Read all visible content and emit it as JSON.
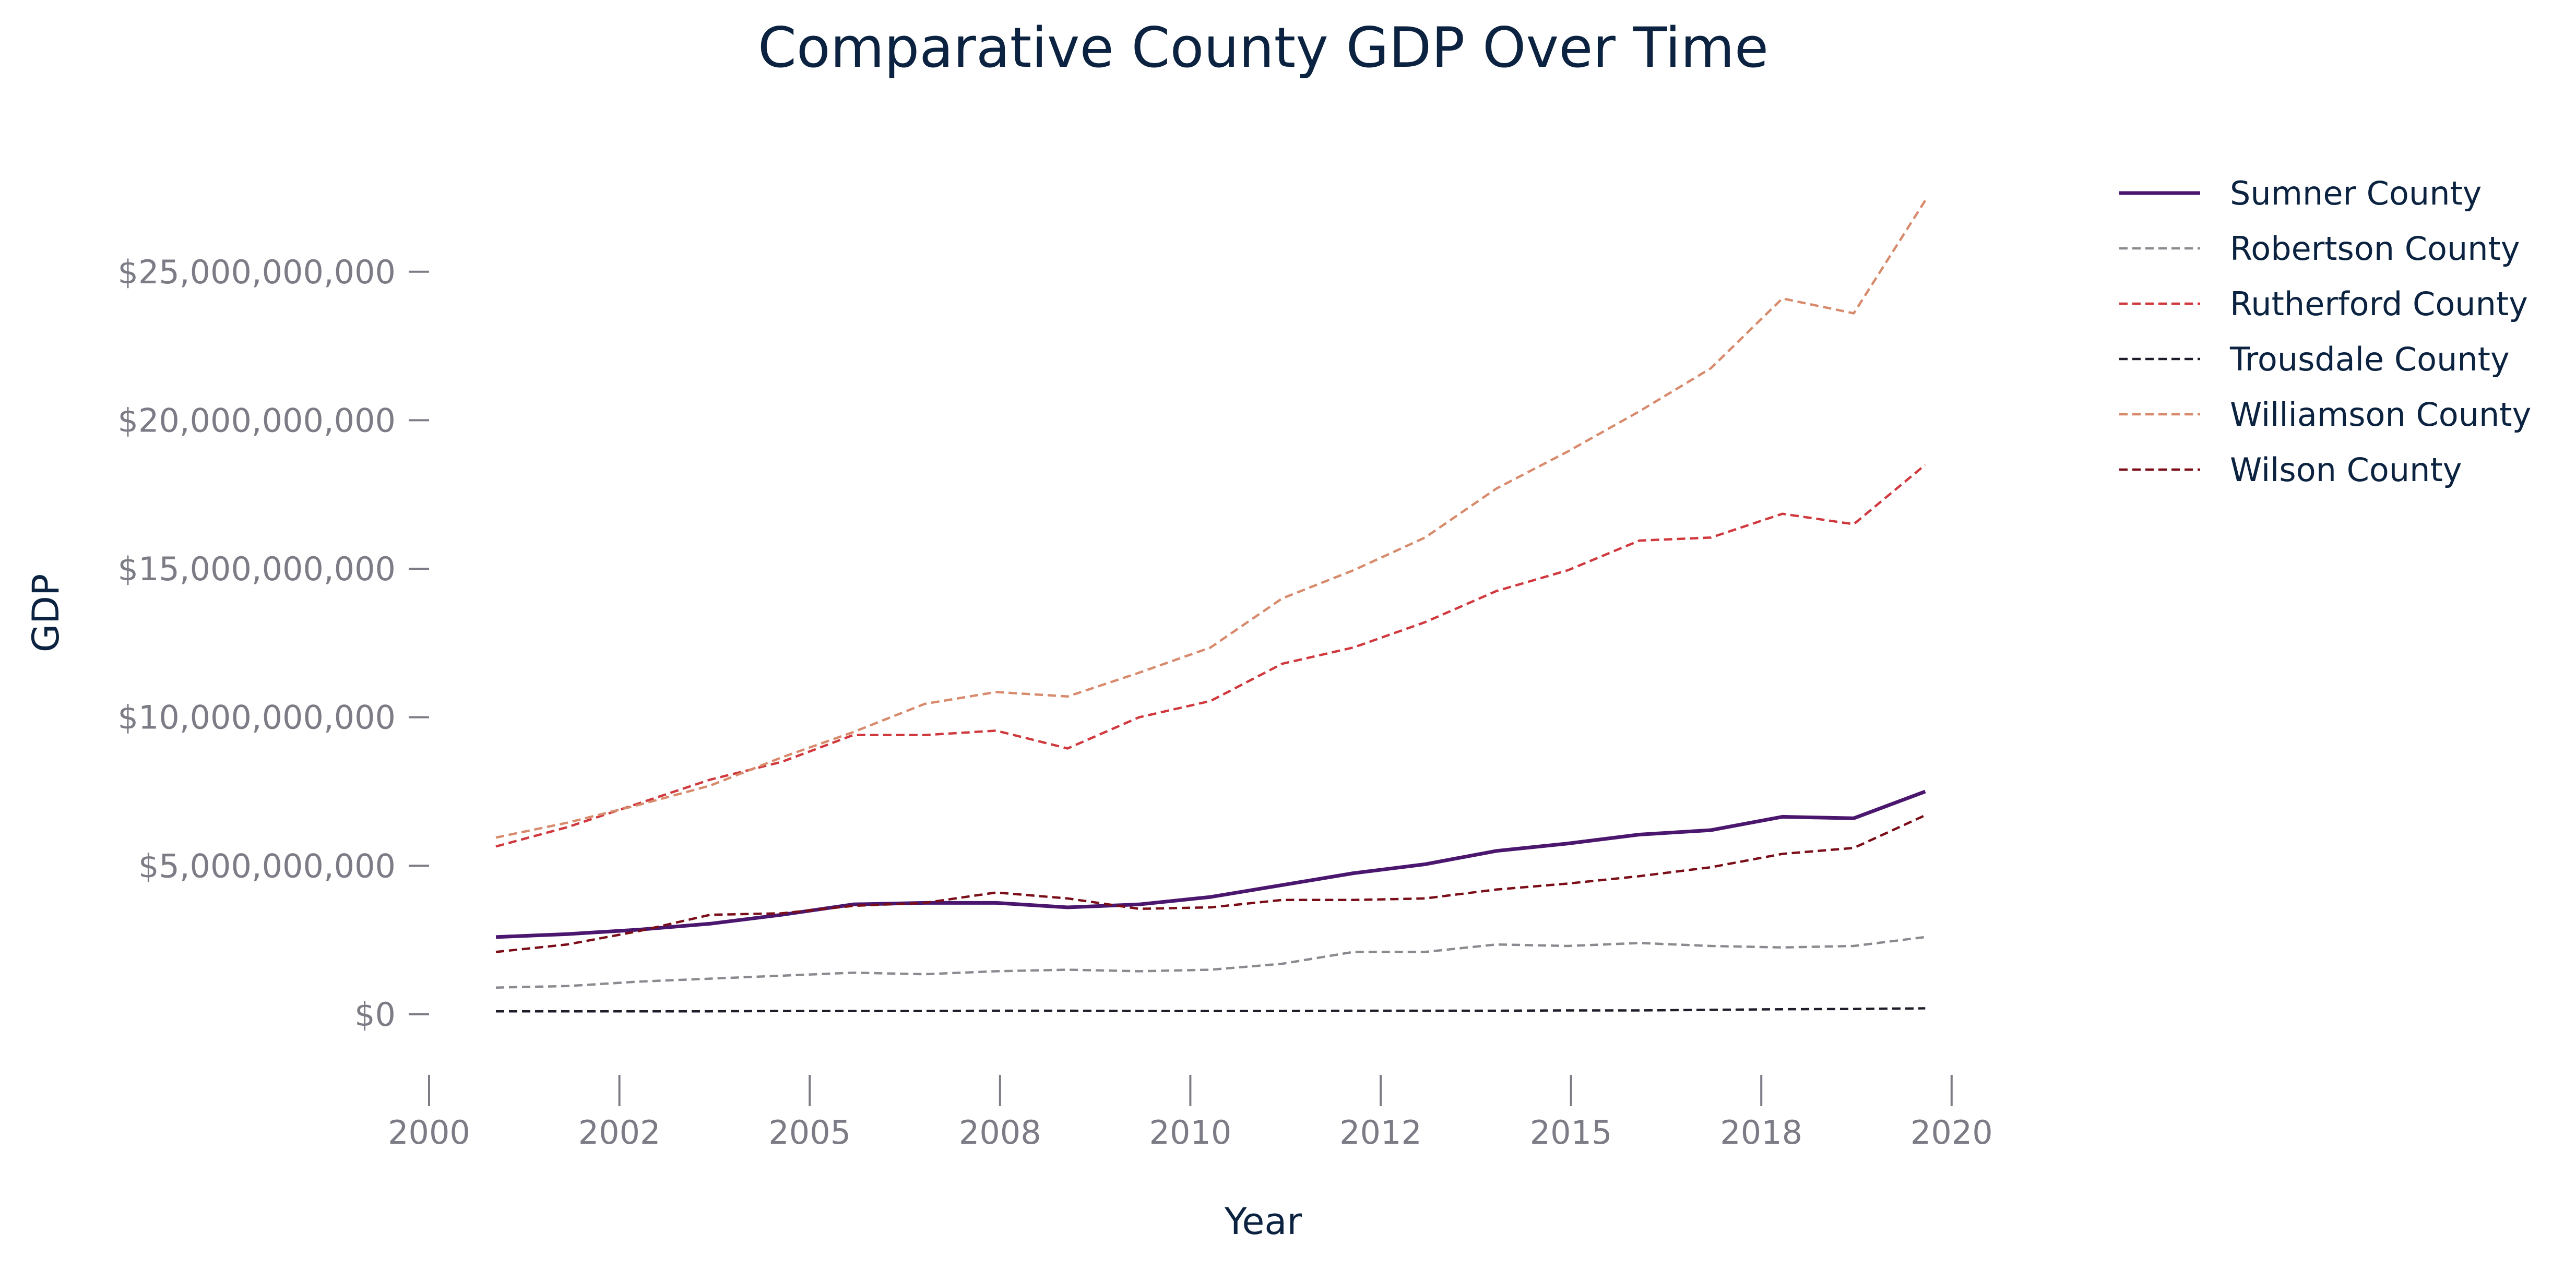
{
  "chart_data": {
    "type": "line",
    "title": "Comparative County GDP Over Time",
    "xlabel": "Year",
    "ylabel": "GDP",
    "x_ticks": [
      "2000",
      "2002",
      "2005",
      "2008",
      "2010",
      "2012",
      "2015",
      "2018",
      "2020"
    ],
    "y_ticks": [
      "$0",
      "$5,000,000,000",
      "$10,000,000,000",
      "$15,000,000,000",
      "$20,000,000,000",
      "$25,000,000,000"
    ],
    "y_tick_values": [
      0,
      5000000000,
      10000000000,
      15000000000,
      20000000000,
      25000000000
    ],
    "xlim": [
      2001.0,
      2022.4
    ],
    "ylim": [
      -1600000000,
      28000000000
    ],
    "grid": false,
    "legend": "right",
    "x": [
      2001,
      2002,
      2003,
      2004,
      2005,
      2006,
      2007,
      2008,
      2009,
      2010,
      2011,
      2012,
      2013,
      2014,
      2015,
      2016,
      2017,
      2018,
      2019,
      2020,
      2021
    ],
    "series": [
      {
        "name": "Sumner County",
        "color": "#4b176e",
        "dash": "solid",
        "values": [
          2600000000,
          2700000000,
          2850000000,
          3050000000,
          3350000000,
          3700000000,
          3750000000,
          3750000000,
          3600000000,
          3700000000,
          3950000000,
          4350000000,
          4750000000,
          5050000000,
          5500000000,
          5750000000,
          6050000000,
          6200000000,
          6650000000,
          6600000000,
          7500000000
        ]
      },
      {
        "name": "Robertson County",
        "color": "#8c8a90",
        "dash": "dashed",
        "values": [
          900000000,
          950000000,
          1100000000,
          1200000000,
          1300000000,
          1400000000,
          1350000000,
          1450000000,
          1500000000,
          1450000000,
          1500000000,
          1700000000,
          2100000000,
          2100000000,
          2350000000,
          2300000000,
          2400000000,
          2300000000,
          2250000000,
          2300000000,
          2600000000
        ]
      },
      {
        "name": "Rutherford County",
        "color": "#d0383d",
        "dash": "dashed",
        "values": [
          5650000000,
          6300000000,
          7100000000,
          7900000000,
          8500000000,
          9400000000,
          9400000000,
          9550000000,
          8950000000,
          10000000000,
          10550000000,
          11800000000,
          12350000000,
          13200000000,
          14250000000,
          14950000000,
          15950000000,
          16050000000,
          16850000000,
          16500000000,
          18500000000
        ]
      },
      {
        "name": "Trousdale County",
        "color": "#1e1e2a",
        "dash": "dashed",
        "values": [
          100000000,
          100000000,
          100000000,
          100000000,
          110000000,
          110000000,
          110000000,
          120000000,
          120000000,
          110000000,
          110000000,
          110000000,
          120000000,
          120000000,
          120000000,
          130000000,
          130000000,
          150000000,
          170000000,
          180000000,
          200000000
        ]
      },
      {
        "name": "Williamson County",
        "color": "#d88a6c",
        "dash": "dashed",
        "values": [
          5950000000,
          6450000000,
          7050000000,
          7700000000,
          8650000000,
          9500000000,
          10450000000,
          10850000000,
          10700000000,
          11500000000,
          12350000000,
          14000000000,
          14950000000,
          16050000000,
          17700000000,
          18950000000,
          20300000000,
          21750000000,
          24100000000,
          23600000000,
          27400000000
        ]
      },
      {
        "name": "Wilson County",
        "color": "#7a0d18",
        "dash": "dashed",
        "values": [
          2100000000,
          2350000000,
          2800000000,
          3350000000,
          3400000000,
          3650000000,
          3750000000,
          4100000000,
          3900000000,
          3550000000,
          3600000000,
          3850000000,
          3850000000,
          3900000000,
          4200000000,
          4400000000,
          4650000000,
          4950000000,
          5400000000,
          5600000000,
          6700000000
        ]
      }
    ]
  }
}
